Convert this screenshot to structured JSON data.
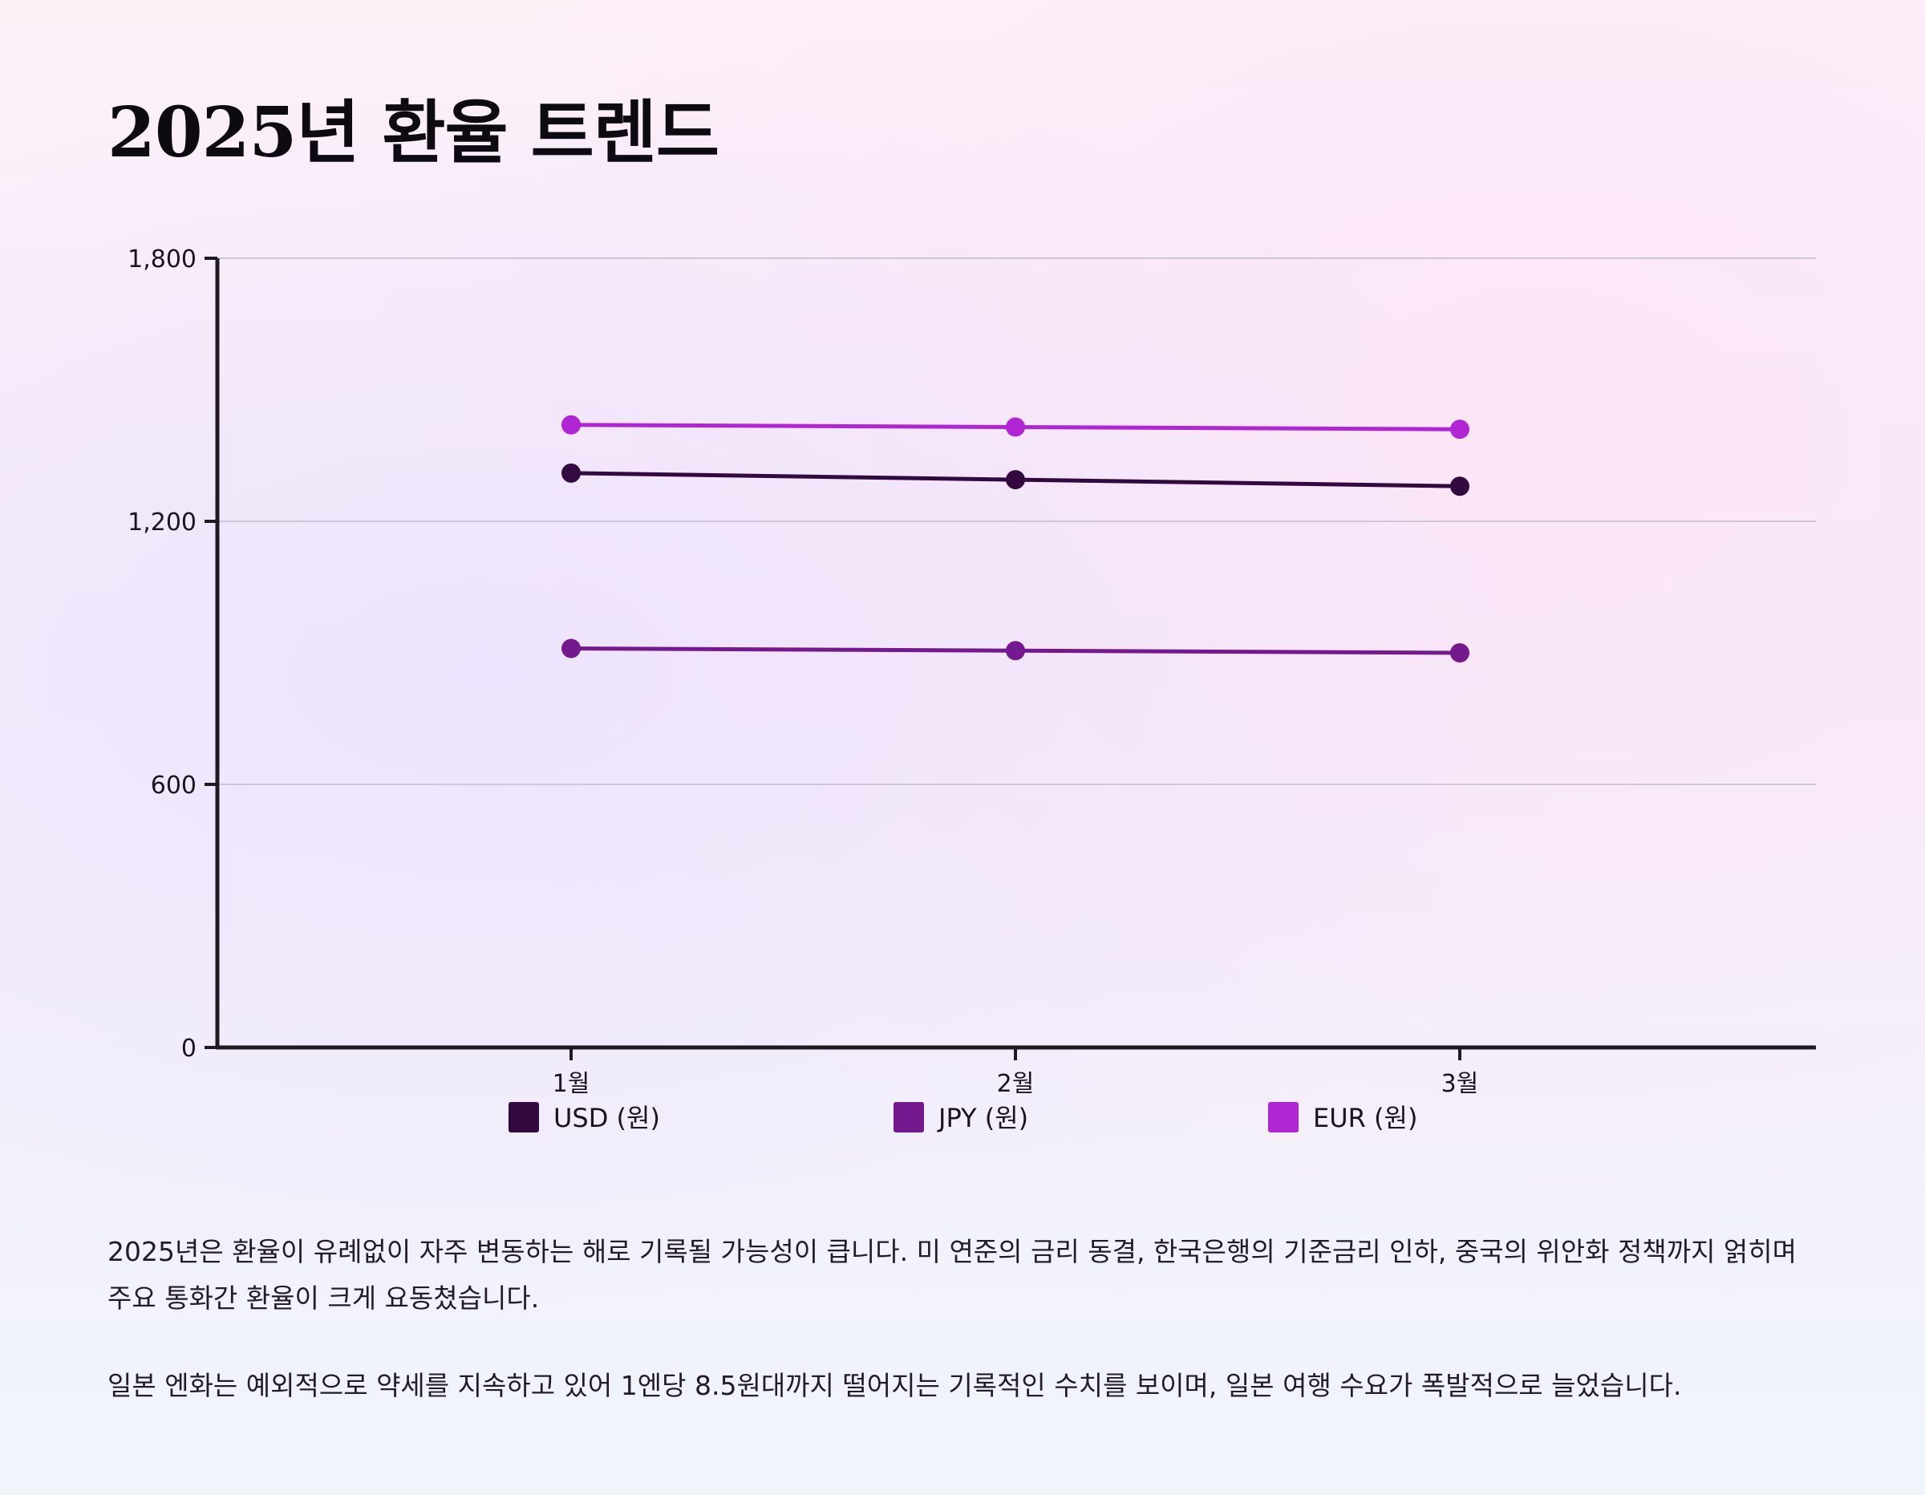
{
  "title": "2025년 환율 트렌드",
  "chart_data": {
    "type": "line",
    "categories": [
      "1월",
      "2월",
      "3월"
    ],
    "series": [
      {
        "name": "USD (원)",
        "color": "#330a40",
        "values": [
          1310,
          1295,
          1280
        ]
      },
      {
        "name": "JPY (원)",
        "color": "#741a8e",
        "values": [
          910,
          905,
          900
        ]
      },
      {
        "name": "EUR (원)",
        "color": "#b026d4",
        "values": [
          1420,
          1415,
          1410
        ]
      }
    ],
    "yticks": [
      "0",
      "600",
      "1,200",
      "1,800"
    ],
    "ytick_values": [
      0,
      600,
      1200,
      1800
    ],
    "ylim": [
      0,
      1800
    ],
    "grid": true,
    "legend_position": "bottom"
  },
  "paragraphs": [
    "2025년은 환율이 유례없이 자주 변동하는 해로 기록될 가능성이 큽니다. 미 연준의 금리 동결, 한국은행의 기준금리 인하, 중국의 위안화 정책까지 얽히며 주요 통화간 환율이 크게 요동쳤습니다.",
    "일본 엔화는 예외적으로 약세를 지속하고 있어 1엔당 8.5원대까지 떨어지는 기록적인 수치를 보이며, 일본 여행 수요가 폭발적으로 늘었습니다."
  ]
}
